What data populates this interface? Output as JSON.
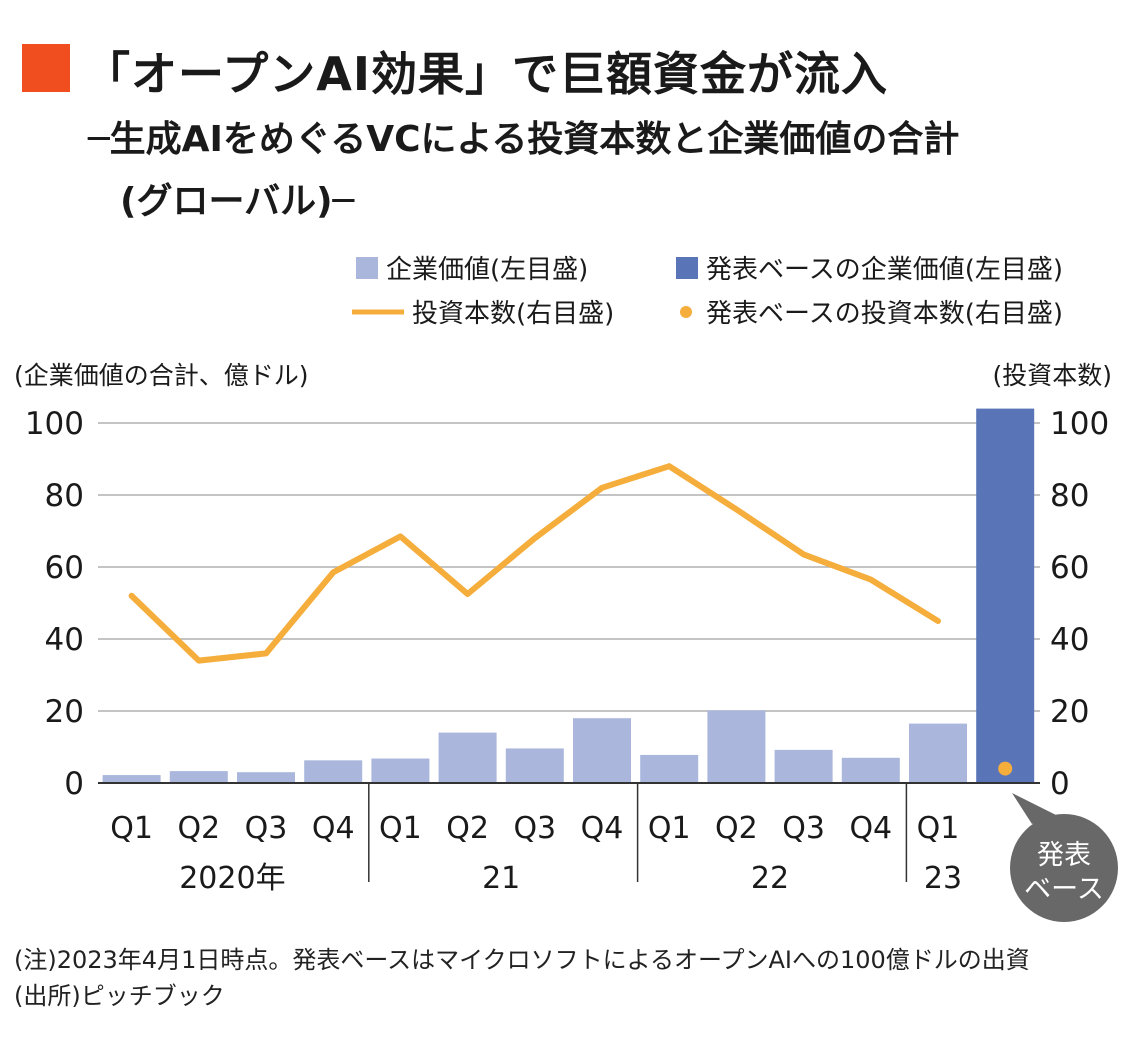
{
  "title": {
    "accent_color": "#f04e1e",
    "main": "「オープンAI効果」で巨額資金が流入",
    "subtitle_line1": "─生成AIをめぐるVCによる投資本数と企業価値の合計",
    "subtitle_line2": "(グローバル)─"
  },
  "chart_data": {
    "type": "bar",
    "x_quarters": [
      "Q1",
      "Q2",
      "Q3",
      "Q4",
      "Q1",
      "Q2",
      "Q3",
      "Q4",
      "Q1",
      "Q2",
      "Q3",
      "Q4",
      "Q1"
    ],
    "year_groups": [
      {
        "label": "2020年",
        "start": 0,
        "end": 3
      },
      {
        "label": "21",
        "start": 4,
        "end": 7
      },
      {
        "label": "22",
        "start": 8,
        "end": 11
      },
      {
        "label": "23",
        "start": 12,
        "end": 12
      }
    ],
    "left_axis_label": "(企業価値の合計、億ドル)",
    "right_axis_label": "(投資本数)",
    "ylim": [
      0,
      100
    ],
    "y_ticks": [
      0,
      20,
      40,
      60,
      80,
      100
    ],
    "y_tick_labels": [
      "0",
      "20",
      "40",
      "60",
      "80",
      "100"
    ],
    "y2lim": [
      0,
      100
    ],
    "grid": true,
    "legend_position": "top-right",
    "series": [
      {
        "name": "企業価値(左目盛)",
        "kind": "bar",
        "axis": "left",
        "color": "#aab6dc",
        "values": [
          2.2,
          3.3,
          3.0,
          6.3,
          6.8,
          14.0,
          9.6,
          18.0,
          7.8,
          20.2,
          9.2,
          7.0,
          16.5
        ]
      },
      {
        "name": "発表ベースの企業価値(左目盛)",
        "kind": "bar",
        "axis": "left",
        "color": "#5a74b8",
        "index": 13,
        "value": 104
      },
      {
        "name": "投資本数(右目盛)",
        "kind": "line",
        "axis": "right",
        "color": "#f5ad3c",
        "values": [
          52,
          34,
          36,
          58.5,
          68.5,
          52.5,
          68,
          82,
          88,
          76,
          63.5,
          56.5,
          45
        ]
      },
      {
        "name": "発表ベースの投資本数(右目盛)",
        "kind": "point",
        "axis": "right",
        "color": "#f5ad3c",
        "index": 13,
        "value": 4
      }
    ],
    "callout": {
      "line1": "発表",
      "line2": "ベース",
      "color": "#686868"
    }
  },
  "notes": {
    "note": "(注)2023年4月1日時点。発表ベースはマイクロソフトによるオープンAIへの100億ドルの出資",
    "source": "(出所)ピッチブック"
  }
}
